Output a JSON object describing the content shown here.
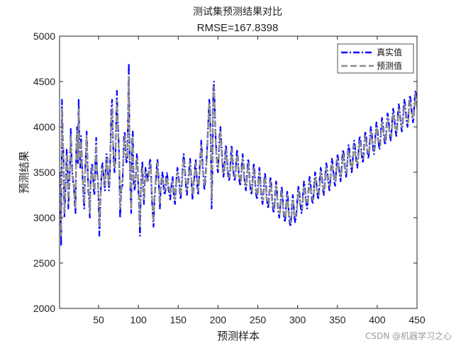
{
  "chart_data": {
    "type": "line",
    "title": "测试集预测结果对比",
    "subtitle": "RMSE=167.8398",
    "xlabel": "预测样本",
    "ylabel": "预测结果",
    "xlim": [
      1,
      450
    ],
    "ylim": [
      2000,
      5000
    ],
    "xticks": [
      50,
      100,
      150,
      200,
      250,
      300,
      350,
      400,
      450
    ],
    "yticks": [
      2000,
      2500,
      3000,
      3500,
      4000,
      4500,
      5000
    ],
    "legend_position": "top-right",
    "grid": false,
    "series": [
      {
        "name": "真实值",
        "color": "#0000ff",
        "style": "dash-dot",
        "values": [
          3500,
          3300,
          2700,
          4300,
          3900,
          3650,
          3000,
          3200,
          3450,
          3750,
          3600,
          3100,
          3300,
          3550,
          3980,
          3700,
          3500,
          3400,
          3350,
          3150,
          3050,
          3800,
          4000,
          3600,
          4300,
          3800,
          3550,
          3900,
          3650,
          3420,
          3200,
          3100,
          3500,
          3700,
          3950,
          3650,
          3300,
          3220,
          3000,
          3400,
          3550,
          3600,
          3450,
          3300,
          3250,
          3650,
          3880,
          3500,
          3450,
          3200,
          2800,
          3100,
          3350,
          3550,
          3600,
          3500,
          3400,
          3300,
          3500,
          3700,
          3680,
          3450,
          3300,
          3400,
          3800,
          4200,
          4300,
          3900,
          3600,
          3500,
          3600,
          4000,
          4400,
          4100,
          3900,
          3600,
          3000,
          3200,
          3350,
          3350,
          3650,
          3900,
          3950,
          3700,
          3600,
          3600,
          4100,
          4700,
          3700,
          3300,
          3050,
          3850,
          3950,
          3400,
          3300,
          3350,
          3500,
          3700,
          3600,
          3300,
          3100,
          2800,
          3280,
          3500,
          3620,
          3300,
          3150,
          3400,
          3550,
          3500,
          3450,
          3400,
          3500,
          3600,
          3650,
          3450,
          3200,
          3050,
          2900,
          3150,
          3300,
          3400,
          3550,
          3650,
          3500,
          3300,
          3100,
          3300,
          3400,
          3500,
          3450,
          3300,
          3250,
          3300,
          3450,
          3500,
          3400,
          3300,
          3250,
          3200,
          3300,
          3400,
          3450,
          3300,
          3200,
          3150,
          3300,
          3450,
          3550,
          3500,
          3400,
          3300,
          3200,
          3300,
          3450,
          3600,
          3700,
          3600,
          3450,
          3300,
          3250,
          3350,
          3450,
          3550,
          3650,
          3500,
          3350,
          3200,
          3300,
          3400,
          3550,
          3650,
          3500,
          3350,
          3250,
          3400,
          3550,
          3700,
          3850,
          3700,
          3550,
          3400,
          3300,
          3400,
          3550,
          3700,
          3900,
          4100,
          4300,
          4200,
          3800,
          3100,
          3500,
          4400,
          4500,
          4200,
          3900,
          3700,
          3550,
          3500,
          3700,
          3900,
          4000,
          3850,
          3700,
          3550,
          3450,
          3550,
          3700,
          3800,
          3700,
          3550,
          3450,
          3400,
          3500,
          3650,
          3800,
          3700,
          3550,
          3450,
          3400,
          3500,
          3650,
          3750,
          3650,
          3500,
          3400,
          3350,
          3450,
          3600,
          3700,
          3600,
          3450,
          3350,
          3300,
          3400,
          3550,
          3650,
          3550,
          3400,
          3300,
          3250,
          3350,
          3500,
          3600,
          3500,
          3350,
          3250,
          3200,
          3300,
          3450,
          3550,
          3450,
          3300,
          3200,
          3150,
          3250,
          3400,
          3500,
          3400,
          3250,
          3150,
          3100,
          3200,
          3350,
          3450,
          3350,
          3200,
          3100,
          3050,
          3150,
          3300,
          3400,
          3300,
          3150,
          3050,
          3000,
          3100,
          3250,
          3350,
          3250,
          3100,
          3000,
          2950,
          3050,
          3200,
          3300,
          3200,
          3050,
          2950,
          2900,
          3000,
          3150,
          3250,
          3150,
          3000,
          2950,
          3000,
          3100,
          3250,
          3350,
          3300,
          3200,
          3100,
          3050,
          3150,
          3300,
          3400,
          3350,
          3250,
          3150,
          3100,
          3200,
          3350,
          3450,
          3400,
          3300,
          3200,
          3150,
          3250,
          3400,
          3500,
          3450,
          3350,
          3250,
          3200,
          3300,
          3450,
          3550,
          3500,
          3400,
          3300,
          3250,
          3350,
          3500,
          3600,
          3550,
          3450,
          3350,
          3300,
          3400,
          3550,
          3650,
          3600,
          3500,
          3400,
          3350,
          3450,
          3600,
          3700,
          3650,
          3550,
          3450,
          3400,
          3500,
          3650,
          3750,
          3700,
          3600,
          3500,
          3450,
          3550,
          3700,
          3800,
          3750,
          3650,
          3550,
          3500,
          3600,
          3750,
          3850,
          3800,
          3700,
          3600,
          3550,
          3650,
          3800,
          3900,
          3850,
          3750,
          3650,
          3600,
          3700,
          3850,
          3950,
          3900,
          3800,
          3700,
          3650,
          3750,
          3900,
          4000,
          3950,
          3850,
          3750,
          3700,
          3800,
          3950,
          4050,
          4000,
          3900,
          3800,
          3750,
          3850,
          4000,
          4100,
          4050,
          3950,
          3850,
          3800,
          3900,
          4050,
          4150,
          4100,
          4000,
          3900,
          3850,
          3950,
          4100,
          4200,
          4150,
          4050,
          3950,
          3900,
          4000,
          4150,
          4250,
          4200,
          4100,
          4000,
          3950,
          4050,
          4200,
          4300,
          4250,
          4150,
          4050,
          4000,
          4100,
          4250,
          4350,
          4300,
          4200,
          4100,
          4050,
          4150,
          4300,
          4400,
          4350,
          4250,
          4150,
          4100,
          4200,
          4350,
          4450,
          4400,
          4300,
          4200,
          4150,
          4250,
          4400,
          4500,
          4450,
          4350,
          4250,
          4200,
          4300,
          4450,
          4550,
          4500,
          4400
        ]
      },
      {
        "name": "预测值",
        "color": "#8c8c8c",
        "style": "dash",
        "values": [
          3450,
          3350,
          2800,
          4200,
          3850,
          3600,
          3050,
          3250,
          3500,
          3700,
          3550,
          3150,
          3350,
          3500,
          3900,
          3650,
          3450,
          3450,
          3300,
          3200,
          3100,
          3750,
          3950,
          3650,
          4200,
          3750,
          3600,
          3850,
          3600,
          3450,
          3250,
          3150,
          3450,
          3650,
          3900,
          3600,
          3350,
          3250,
          3050,
          3350,
          3500,
          3550,
          3400,
          3350,
          3300,
          3600,
          3800,
          3550,
          3400,
          3250,
          2900,
          3150,
          3300,
          3500,
          3550,
          3450,
          3450,
          3350,
          3450,
          3650,
          3650,
          3500,
          3350,
          3450,
          3750,
          4100,
          4200,
          3850,
          3650,
          3550,
          3650,
          3950,
          4300,
          4050,
          3850,
          3650,
          3100,
          3250,
          3400,
          3400,
          3600,
          3850,
          3900,
          3650,
          3650,
          3650,
          4050,
          4550,
          3650,
          3350,
          3100,
          3800,
          3900,
          3450,
          3350,
          3400,
          3450,
          3650,
          3550,
          3350,
          3150,
          2900,
          3300,
          3450,
          3550,
          3350,
          3200,
          3350,
          3500,
          3450,
          3400,
          3450,
          3450,
          3550,
          3600,
          3500,
          3250,
          3100,
          2950,
          3200,
          3350,
          3450,
          3500,
          3600,
          3450,
          3350,
          3150,
          3350,
          3450,
          3450,
          3400,
          3350,
          3300,
          3350,
          3400,
          3450,
          3350,
          3350,
          3300,
          3250,
          3350,
          3350,
          3400,
          3350,
          3250,
          3200,
          3350,
          3400,
          3500,
          3450,
          3450,
          3350,
          3250,
          3350,
          3400,
          3550,
          3650,
          3550,
          3500,
          3350,
          3300,
          3400,
          3400,
          3500,
          3600,
          3450,
          3400,
          3250,
          3350,
          3450,
          3500,
          3600,
          3450,
          3400,
          3300,
          3350,
          3500,
          3650,
          3800,
          3650,
          3500,
          3450,
          3350,
          3450,
          3500,
          3650,
          3850,
          4050,
          4250,
          4150,
          3750,
          3200,
          3550,
          4350,
          4450,
          4150,
          3850,
          3650,
          3600,
          3550,
          3650,
          3850,
          3950,
          3800,
          3650,
          3500,
          3500,
          3500,
          3650,
          3750,
          3650,
          3500,
          3500,
          3450,
          3450,
          3600,
          3750,
          3650,
          3500,
          3500,
          3450,
          3450,
          3600,
          3700,
          3600,
          3450,
          3450,
          3400,
          3400,
          3550,
          3650,
          3550,
          3400,
          3400,
          3350,
          3350,
          3500,
          3600,
          3500,
          3350,
          3350,
          3300,
          3300,
          3450,
          3550,
          3450,
          3300,
          3300,
          3250,
          3250,
          3400,
          3500,
          3400,
          3250,
          3250,
          3200,
          3200,
          3350,
          3450,
          3350,
          3200,
          3200,
          3150,
          3150,
          3300,
          3400,
          3300,
          3150,
          3150,
          3100,
          3100,
          3250,
          3350,
          3250,
          3100,
          3100,
          3050,
          3050,
          3200,
          3300,
          3200,
          3050,
          3050,
          3000,
          3000,
          3150,
          3250,
          3150,
          3000,
          3000,
          2950,
          2950,
          3100,
          3200,
          3100,
          3000,
          3000,
          3050,
          3050,
          3200,
          3300,
          3250,
          3150,
          3150,
          3100,
          3100,
          3250,
          3350,
          3300,
          3200,
          3200,
          3150,
          3150,
          3300,
          3400,
          3350,
          3250,
          3250,
          3200,
          3200,
          3350,
          3450,
          3400,
          3300,
          3300,
          3250,
          3250,
          3400,
          3500,
          3450,
          3350,
          3350,
          3300,
          3300,
          3450,
          3550,
          3500,
          3400,
          3400,
          3350,
          3350,
          3500,
          3600,
          3550,
          3450,
          3450,
          3400,
          3400,
          3550,
          3650,
          3600,
          3500,
          3500,
          3450,
          3450,
          3600,
          3700,
          3650,
          3550,
          3550,
          3500,
          3500,
          3650,
          3750,
          3700,
          3600,
          3600,
          3550,
          3550,
          3700,
          3800,
          3750,
          3650,
          3650,
          3600,
          3600,
          3750,
          3850,
          3800,
          3700,
          3700,
          3650,
          3650,
          3800,
          3900,
          3850,
          3750,
          3750,
          3700,
          3700,
          3850,
          3950,
          3900,
          3800,
          3800,
          3750,
          3750,
          3900,
          4000,
          3950,
          3850,
          3850,
          3800,
          3800,
          3950,
          4050,
          4000,
          3900,
          3900,
          3850,
          3850,
          4000,
          4100,
          4050,
          3950,
          3950,
          3900,
          3900,
          4050,
          4150,
          4100,
          4000,
          4000,
          3950,
          3950,
          4100,
          4200,
          4150,
          4050,
          4050,
          4000,
          4000,
          4150,
          4250,
          4200,
          4100,
          4100,
          4050,
          4050,
          4200,
          4300,
          4250,
          4150,
          4150,
          4100,
          4100,
          4250,
          4350,
          4300,
          4200,
          4200,
          4150,
          4150,
          4300,
          4400,
          4350,
          4250,
          4250,
          4200,
          4200,
          4350,
          4450,
          4400,
          4300
        ]
      }
    ]
  },
  "watermark": "CSDN @机器学习之心"
}
